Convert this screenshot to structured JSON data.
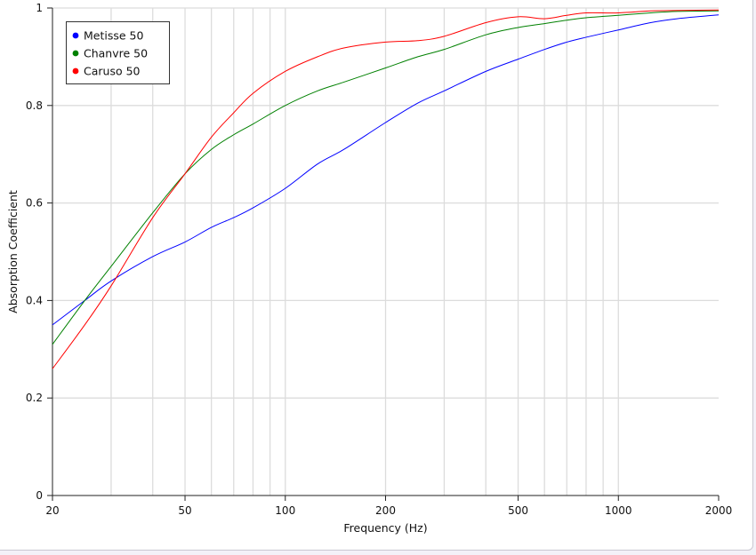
{
  "chart_data": {
    "type": "line",
    "xlabel": "Frequency (Hz)",
    "ylabel": "Absorption Coefficient",
    "x_scale": "log",
    "xlim": [
      20,
      2000
    ],
    "ylim": [
      0,
      1
    ],
    "x_ticks": [
      20,
      50,
      100,
      200,
      500,
      1000,
      2000
    ],
    "x_tick_labels": [
      "20",
      "50",
      "100",
      "200",
      "500",
      "1000",
      "2000"
    ],
    "y_ticks": [
      0,
      0.2,
      0.4,
      0.6,
      0.8,
      1
    ],
    "y_tick_labels": [
      "0",
      "0.2",
      "0.4",
      "0.6",
      "0.8",
      "1"
    ],
    "grid": true,
    "legend_position": "top-left",
    "x": [
      20,
      25,
      30,
      40,
      50,
      60,
      70,
      80,
      100,
      125,
      150,
      200,
      250,
      300,
      400,
      500,
      600,
      700,
      800,
      1000,
      1250,
      1500,
      2000
    ],
    "series": [
      {
        "name": "Metisse 50",
        "color": "#0000ff",
        "values": [
          0.35,
          0.4,
          0.44,
          0.49,
          0.52,
          0.55,
          0.57,
          0.59,
          0.63,
          0.68,
          0.71,
          0.765,
          0.805,
          0.83,
          0.87,
          0.895,
          0.915,
          0.93,
          0.94,
          0.955,
          0.97,
          0.978,
          0.986
        ]
      },
      {
        "name": "Chanvre 50",
        "color": "#008000",
        "values": [
          0.31,
          0.4,
          0.47,
          0.58,
          0.66,
          0.71,
          0.74,
          0.762,
          0.8,
          0.83,
          0.848,
          0.877,
          0.9,
          0.915,
          0.945,
          0.96,
          0.968,
          0.975,
          0.98,
          0.985,
          0.99,
          0.993,
          0.994
        ]
      },
      {
        "name": "Caruso 50",
        "color": "#ff0000",
        "values": [
          0.26,
          0.35,
          0.43,
          0.57,
          0.66,
          0.735,
          0.785,
          0.825,
          0.87,
          0.9,
          0.918,
          0.93,
          0.933,
          0.942,
          0.97,
          0.982,
          0.978,
          0.985,
          0.99,
          0.99,
          0.994,
          0.995,
          0.996
        ]
      }
    ]
  }
}
